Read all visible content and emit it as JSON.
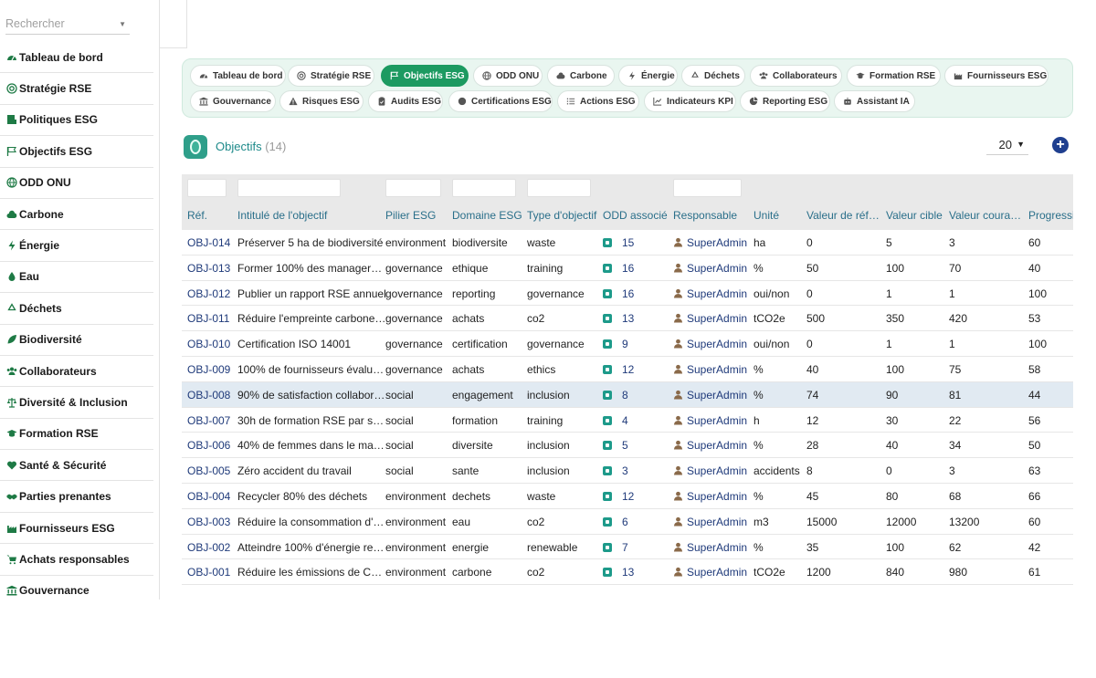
{
  "search": {
    "placeholder": "Rechercher"
  },
  "sidebar": {
    "items": [
      {
        "label": "Tableau de bord",
        "icon": "gauge-icon"
      },
      {
        "label": "Stratégie RSE",
        "icon": "target-icon"
      },
      {
        "label": "Politiques ESG",
        "icon": "policy-icon"
      },
      {
        "label": "Objectifs ESG",
        "icon": "flag-icon"
      },
      {
        "label": "ODD ONU",
        "icon": "globe-icon"
      },
      {
        "label": "Carbone",
        "icon": "cloud-icon"
      },
      {
        "label": "Énergie",
        "icon": "bolt-icon"
      },
      {
        "label": "Eau",
        "icon": "drop-icon"
      },
      {
        "label": "Déchets",
        "icon": "recycle-icon"
      },
      {
        "label": "Biodiversité",
        "icon": "leaf-icon"
      },
      {
        "label": "Collaborateurs",
        "icon": "users-icon"
      },
      {
        "label": "Diversité & Inclusion",
        "icon": "balance-icon"
      },
      {
        "label": "Formation RSE",
        "icon": "graduation-icon"
      },
      {
        "label": "Santé & Sécurité",
        "icon": "heart-icon"
      },
      {
        "label": "Parties prenantes",
        "icon": "handshake-icon"
      },
      {
        "label": "Fournisseurs ESG",
        "icon": "industry-icon"
      },
      {
        "label": "Achats responsables",
        "icon": "cart-icon"
      },
      {
        "label": "Gouvernance",
        "icon": "landmark-icon"
      }
    ]
  },
  "tabs": [
    {
      "label": "Tableau de bord",
      "icon": "gauge-icon"
    },
    {
      "label": "Stratégie RSE",
      "icon": "target-icon"
    },
    {
      "label": "Objectifs ESG",
      "icon": "flag-icon",
      "active": true
    },
    {
      "label": "ODD ONU",
      "icon": "globe-icon"
    },
    {
      "label": "Carbone",
      "icon": "cloud-icon"
    },
    {
      "label": "Énergie",
      "icon": "bolt-icon"
    },
    {
      "label": "Déchets",
      "icon": "recycle-icon"
    },
    {
      "label": "Collaborateurs",
      "icon": "users-icon"
    },
    {
      "label": "Formation RSE",
      "icon": "graduation-icon"
    },
    {
      "label": "Fournisseurs ESG",
      "icon": "industry-icon"
    },
    {
      "label": "Gouvernance",
      "icon": "landmark-icon"
    },
    {
      "label": "Risques ESG",
      "icon": "warning-icon"
    },
    {
      "label": "Audits ESG",
      "icon": "clipboard-icon"
    },
    {
      "label": "Certifications ESG",
      "icon": "certificate-icon"
    },
    {
      "label": "Actions ESG",
      "icon": "list-icon"
    },
    {
      "label": "Indicateurs KPI",
      "icon": "chart-icon"
    },
    {
      "label": "Reporting ESG",
      "icon": "pie-icon"
    },
    {
      "label": "Assistant IA",
      "icon": "robot-icon"
    }
  ],
  "objectives": {
    "title": "Objectifs",
    "count": "(14)"
  },
  "page_size": "20",
  "columns": [
    "Réf.",
    "Intitulé de l'objectif",
    "Pilier ESG",
    "Domaine ESG",
    "Type d'objectif",
    "ODD associé",
    "Responsable",
    "Unité",
    "Valeur de réf…",
    "Valeur cible",
    "Valeur coura…",
    "Progressio"
  ],
  "rows": [
    {
      "ref": "OBJ-014",
      "title": "Préserver 5 ha de biodiversité",
      "pilier": "environment",
      "domaine": "biodiversite",
      "type": "waste",
      "odd": "15",
      "resp": "SuperAdmin",
      "unite": "ha",
      "ref_val": "0",
      "cible": "5",
      "courante": "3",
      "prog": "60"
    },
    {
      "ref": "OBJ-013",
      "title": "Former 100% des manager…",
      "pilier": "governance",
      "domaine": "ethique",
      "type": "training",
      "odd": "16",
      "resp": "SuperAdmin",
      "unite": "%",
      "ref_val": "50",
      "cible": "100",
      "courante": "70",
      "prog": "40"
    },
    {
      "ref": "OBJ-012",
      "title": "Publier un rapport RSE annuel",
      "pilier": "governance",
      "domaine": "reporting",
      "type": "governance",
      "odd": "16",
      "resp": "SuperAdmin",
      "unite": "oui/non",
      "ref_val": "0",
      "cible": "1",
      "courante": "1",
      "prog": "100"
    },
    {
      "ref": "OBJ-011",
      "title": "Réduire l'empreinte carbone…",
      "pilier": "governance",
      "domaine": "achats",
      "type": "co2",
      "odd": "13",
      "resp": "SuperAdmin",
      "unite": "tCO2e",
      "ref_val": "500",
      "cible": "350",
      "courante": "420",
      "prog": "53"
    },
    {
      "ref": "OBJ-010",
      "title": "Certification ISO 14001",
      "pilier": "governance",
      "domaine": "certification",
      "type": "governance",
      "odd": "9",
      "resp": "SuperAdmin",
      "unite": "oui/non",
      "ref_val": "0",
      "cible": "1",
      "courante": "1",
      "prog": "100"
    },
    {
      "ref": "OBJ-009",
      "title": "100% de fournisseurs évalu…",
      "pilier": "governance",
      "domaine": "achats",
      "type": "ethics",
      "odd": "12",
      "resp": "SuperAdmin",
      "unite": "%",
      "ref_val": "40",
      "cible": "100",
      "courante": "75",
      "prog": "58"
    },
    {
      "ref": "OBJ-008",
      "title": "90% de satisfaction collabor…",
      "pilier": "social",
      "domaine": "engagement",
      "type": "inclusion",
      "odd": "8",
      "resp": "SuperAdmin",
      "unite": "%",
      "ref_val": "74",
      "cible": "90",
      "courante": "81",
      "prog": "44",
      "highlight": true
    },
    {
      "ref": "OBJ-007",
      "title": "30h de formation RSE par s…",
      "pilier": "social",
      "domaine": "formation",
      "type": "training",
      "odd": "4",
      "resp": "SuperAdmin",
      "unite": "h",
      "ref_val": "12",
      "cible": "30",
      "courante": "22",
      "prog": "56"
    },
    {
      "ref": "OBJ-006",
      "title": "40% de femmes dans le ma…",
      "pilier": "social",
      "domaine": "diversite",
      "type": "inclusion",
      "odd": "5",
      "resp": "SuperAdmin",
      "unite": "%",
      "ref_val": "28",
      "cible": "40",
      "courante": "34",
      "prog": "50"
    },
    {
      "ref": "OBJ-005",
      "title": "Zéro accident du travail",
      "pilier": "social",
      "domaine": "sante",
      "type": "inclusion",
      "odd": "3",
      "resp": "SuperAdmin",
      "unite": "accidents",
      "ref_val": "8",
      "cible": "0",
      "courante": "3",
      "prog": "63"
    },
    {
      "ref": "OBJ-004",
      "title": "Recycler 80% des déchets",
      "pilier": "environment",
      "domaine": "dechets",
      "type": "waste",
      "odd": "12",
      "resp": "SuperAdmin",
      "unite": "%",
      "ref_val": "45",
      "cible": "80",
      "courante": "68",
      "prog": "66"
    },
    {
      "ref": "OBJ-003",
      "title": "Réduire la consommation d'…",
      "pilier": "environment",
      "domaine": "eau",
      "type": "co2",
      "odd": "6",
      "resp": "SuperAdmin",
      "unite": "m3",
      "ref_val": "15000",
      "cible": "12000",
      "courante": "13200",
      "prog": "60"
    },
    {
      "ref": "OBJ-002",
      "title": "Atteindre 100% d'énergie re…",
      "pilier": "environment",
      "domaine": "energie",
      "type": "renewable",
      "odd": "7",
      "resp": "SuperAdmin",
      "unite": "%",
      "ref_val": "35",
      "cible": "100",
      "courante": "62",
      "prog": "42"
    },
    {
      "ref": "OBJ-001",
      "title": "Réduire les émissions de C…",
      "pilier": "environment",
      "domaine": "carbone",
      "type": "co2",
      "odd": "13",
      "resp": "SuperAdmin",
      "unite": "tCO2e",
      "ref_val": "1200",
      "cible": "840",
      "courante": "980",
      "prog": "61"
    }
  ],
  "colors": {
    "accent": "#1d9a61",
    "link": "#1f3a7a",
    "header_text": "#2a6f8a",
    "add_button": "#1f3f8f"
  }
}
